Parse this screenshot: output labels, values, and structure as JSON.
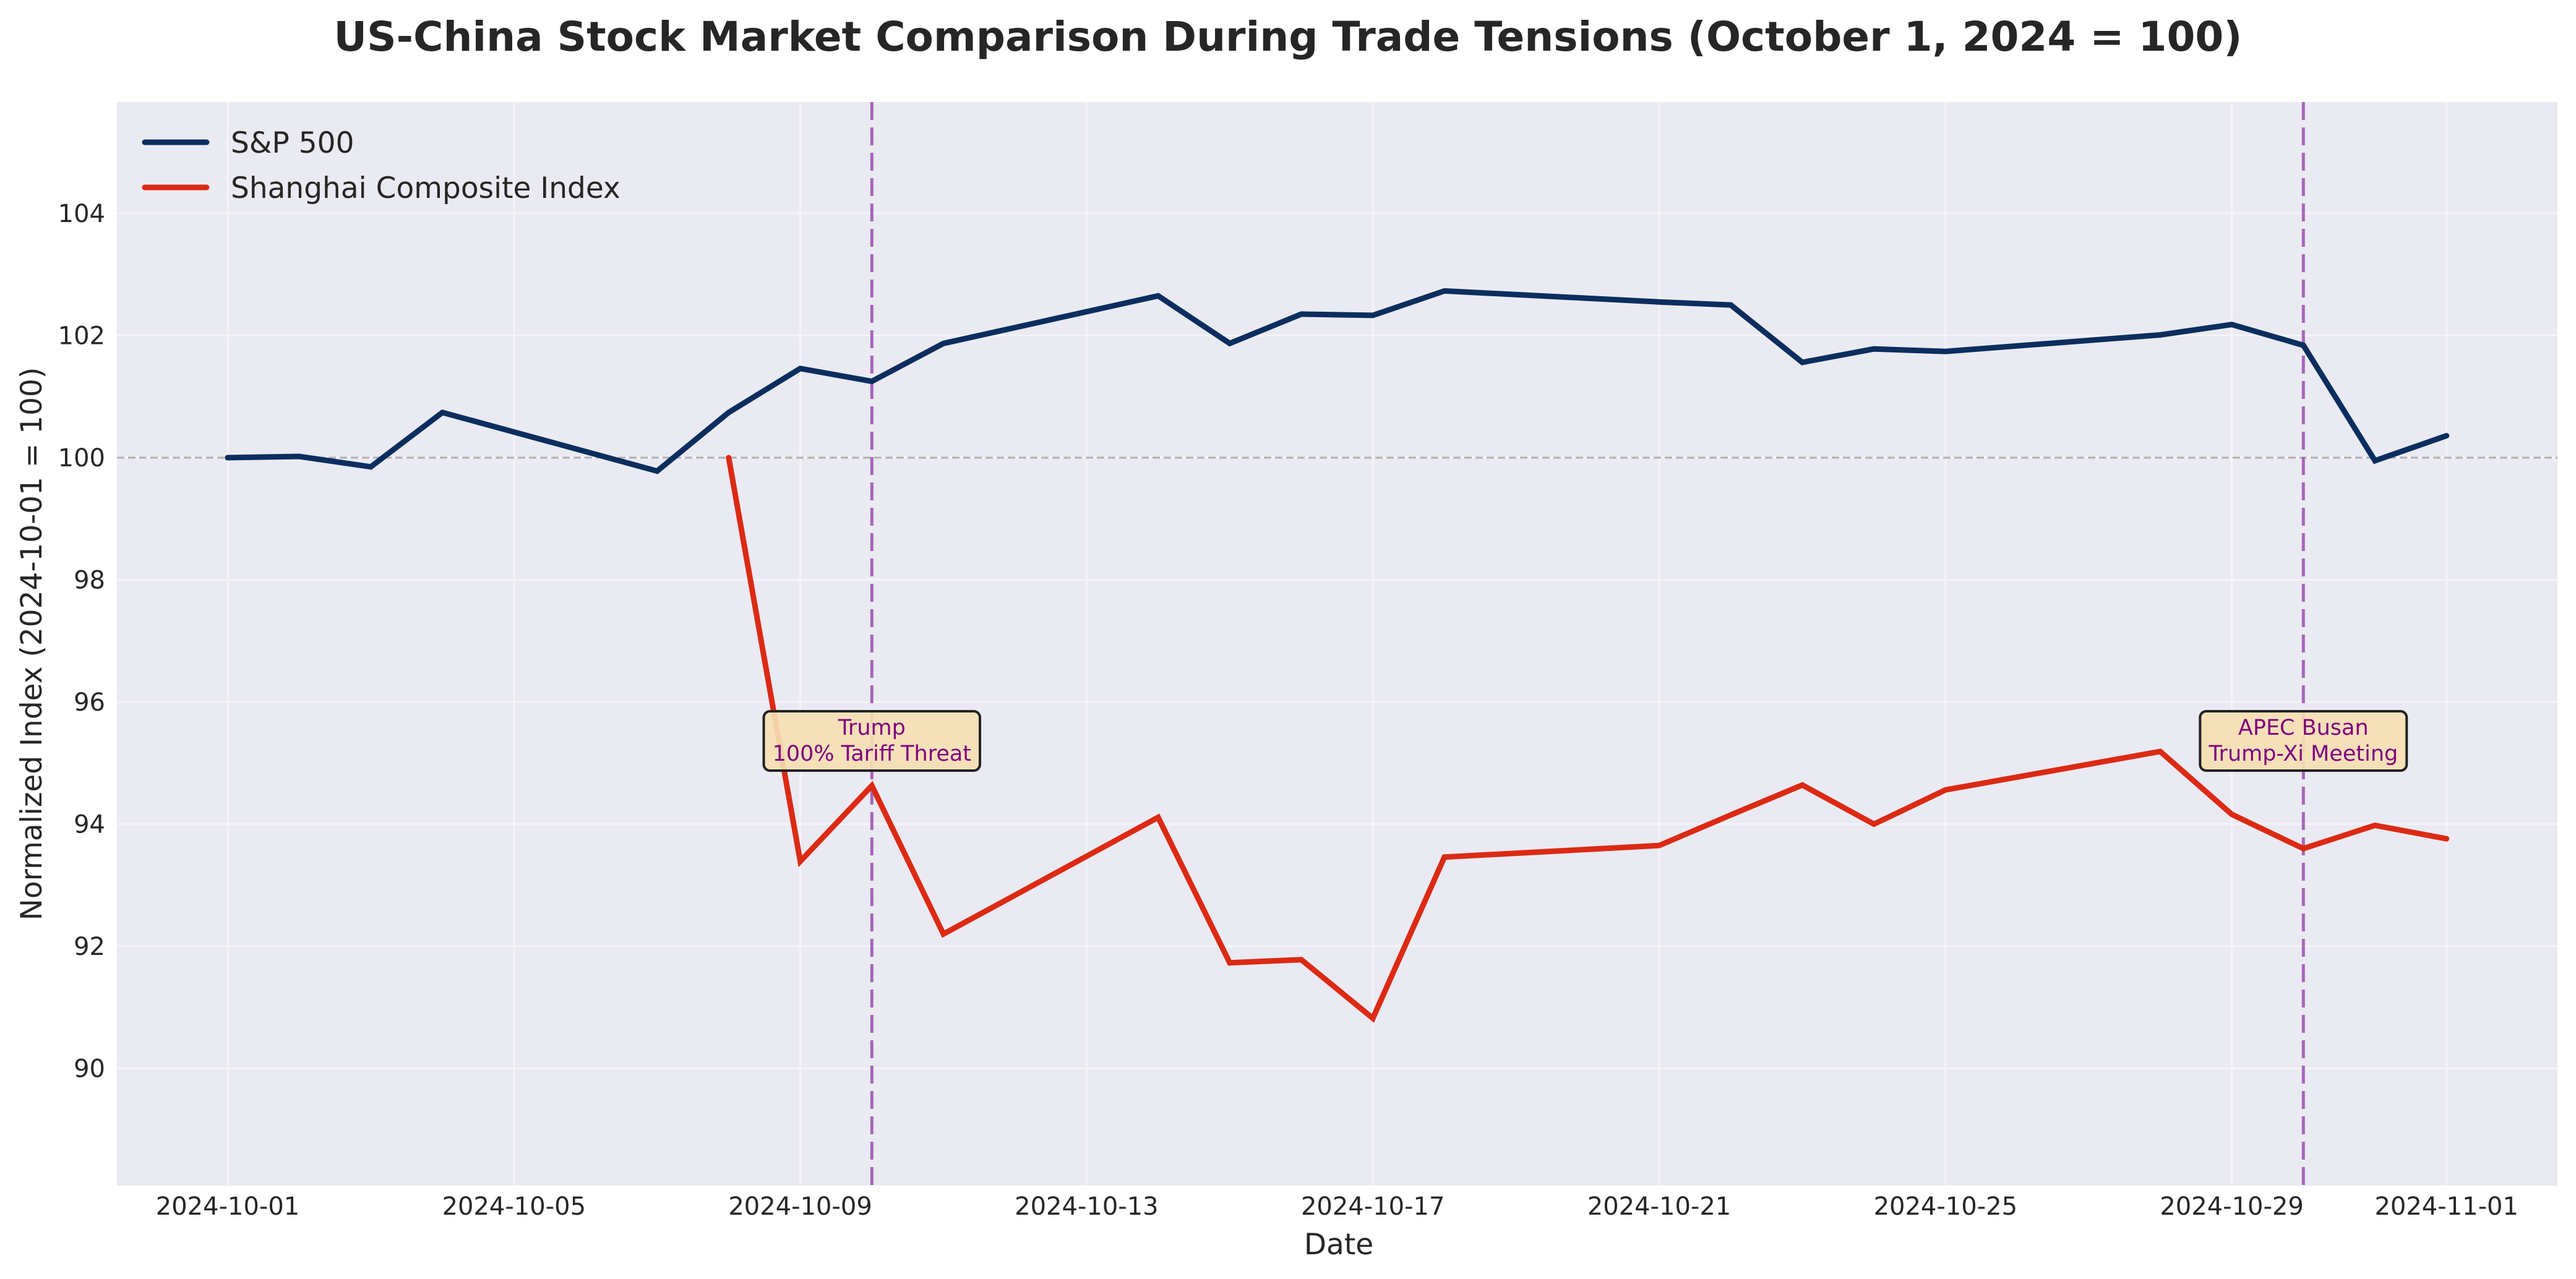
{
  "chart_data": {
    "type": "line",
    "title": "US-China Stock Market Comparison During Trade Tensions (October 1, 2024 = 100)",
    "xlabel": "Date",
    "ylabel": "Normalized Index (2024-10-01 = 100)",
    "x_tick_labels": [
      "2024-10-01",
      "2024-10-05",
      "2024-10-09",
      "2024-10-13",
      "2024-10-17",
      "2024-10-21",
      "2024-10-25",
      "2024-10-29",
      "2024-11-01"
    ],
    "y_ticks": [
      90,
      92,
      94,
      96,
      98,
      100,
      102,
      104
    ],
    "ylim": [
      88.08,
      105.82
    ],
    "xlim": [
      "2024-09-29",
      "2024-11-02"
    ],
    "grid": true,
    "legend_position": "upper left",
    "reference_line": {
      "y": 100,
      "style": "dashed",
      "color": "#b0b0b0"
    },
    "series": [
      {
        "name": "S&P 500",
        "color": "#0b2e5f",
        "points": [
          {
            "date": "2024-10-01",
            "value": 100.0
          },
          {
            "date": "2024-10-02",
            "value": 100.02
          },
          {
            "date": "2024-10-03",
            "value": 99.85
          },
          {
            "date": "2024-10-04",
            "value": 100.74
          },
          {
            "date": "2024-10-07",
            "value": 99.78
          },
          {
            "date": "2024-10-08",
            "value": 100.74
          },
          {
            "date": "2024-10-09",
            "value": 101.46
          },
          {
            "date": "2024-10-10",
            "value": 101.25
          },
          {
            "date": "2024-10-11",
            "value": 101.87
          },
          {
            "date": "2024-10-14",
            "value": 102.65
          },
          {
            "date": "2024-10-15",
            "value": 101.87
          },
          {
            "date": "2024-10-16",
            "value": 102.35
          },
          {
            "date": "2024-10-17",
            "value": 102.33
          },
          {
            "date": "2024-10-18",
            "value": 102.73
          },
          {
            "date": "2024-10-21",
            "value": 102.55
          },
          {
            "date": "2024-10-22",
            "value": 102.5
          },
          {
            "date": "2024-10-23",
            "value": 101.56
          },
          {
            "date": "2024-10-24",
            "value": 101.78
          },
          {
            "date": "2024-10-25",
            "value": 101.74
          },
          {
            "date": "2024-10-28",
            "value": 102.01
          },
          {
            "date": "2024-10-29",
            "value": 102.18
          },
          {
            "date": "2024-10-30",
            "value": 101.84
          },
          {
            "date": "2024-10-31",
            "value": 99.95
          },
          {
            "date": "2024-11-01",
            "value": 100.36
          }
        ]
      },
      {
        "name": "Shanghai Composite Index",
        "color": "#dc2a14",
        "points": [
          {
            "date": "2024-10-08",
            "value": 100.0
          },
          {
            "date": "2024-10-09",
            "value": 93.39
          },
          {
            "date": "2024-10-10",
            "value": 94.63
          },
          {
            "date": "2024-10-11",
            "value": 92.2
          },
          {
            "date": "2024-10-14",
            "value": 94.11
          },
          {
            "date": "2024-10-15",
            "value": 91.73
          },
          {
            "date": "2024-10-16",
            "value": 91.78
          },
          {
            "date": "2024-10-17",
            "value": 90.82
          },
          {
            "date": "2024-10-18",
            "value": 93.46
          },
          {
            "date": "2024-10-21",
            "value": 93.65
          },
          {
            "date": "2024-10-22",
            "value": 94.15
          },
          {
            "date": "2024-10-23",
            "value": 94.64
          },
          {
            "date": "2024-10-24",
            "value": 94.0
          },
          {
            "date": "2024-10-25",
            "value": 94.56
          },
          {
            "date": "2024-10-28",
            "value": 95.19
          },
          {
            "date": "2024-10-29",
            "value": 94.16
          },
          {
            "date": "2024-10-30",
            "value": 93.6
          },
          {
            "date": "2024-10-31",
            "value": 93.98
          },
          {
            "date": "2024-11-01",
            "value": 93.76
          }
        ]
      }
    ],
    "annotations": [
      {
        "date": "2024-10-10",
        "lines": [
          "Trump",
          "100% Tariff Threat"
        ],
        "y_value": 95.2,
        "line_color": "#9b4fb0"
      },
      {
        "date": "2024-10-30",
        "lines": [
          "APEC Busan",
          "Trump-Xi Meeting"
        ],
        "y_value": 95.2,
        "line_color": "#9b4fb0"
      }
    ]
  },
  "style": {
    "plot_bg": "#eaeaf2",
    "grid_color": "#f5f5f8",
    "annotation_bg": "#f5deb3",
    "annotation_text": "#800080"
  }
}
